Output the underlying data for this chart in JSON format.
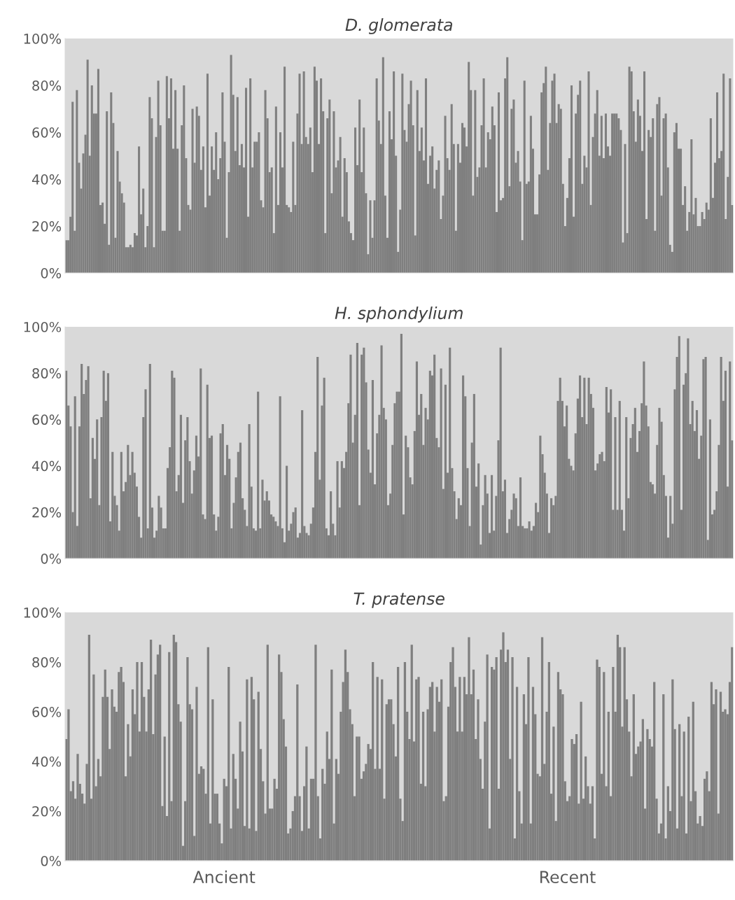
{
  "chart_data": [
    {
      "type": "bar",
      "title": "D. glomerata",
      "tick_labels": "y",
      "grid": false,
      "ylim": [
        0,
        100
      ],
      "yticks": [
        {
          "value": 0,
          "label": "0%"
        },
        {
          "value": 20,
          "label": "20%"
        },
        {
          "value": 40,
          "label": "40%"
        },
        {
          "value": 60,
          "label": "60%"
        },
        {
          "value": 80,
          "label": "80%"
        },
        {
          "value": 100,
          "label": "100%"
        }
      ],
      "categories": [
        null,
        null,
        null,
        null,
        null,
        null,
        null,
        null,
        null,
        null,
        null,
        null,
        null,
        null,
        null,
        null,
        null,
        null,
        null,
        null,
        null,
        null,
        null,
        null,
        null,
        null,
        null,
        null,
        null,
        null,
        null,
        null,
        null,
        null,
        null,
        null,
        null,
        null,
        null,
        null,
        null,
        null,
        null,
        null,
        null,
        null,
        null,
        null,
        null,
        null,
        null,
        null,
        null,
        null,
        null,
        null,
        null,
        null,
        null,
        null,
        null,
        null,
        null,
        null,
        null,
        null,
        null,
        null,
        null,
        null,
        null,
        null,
        null,
        null,
        null,
        null,
        null,
        null,
        null,
        null,
        null,
        null,
        null,
        null,
        null,
        null,
        null,
        null,
        null,
        null,
        null,
        null,
        null,
        null,
        null,
        null,
        null,
        null,
        null,
        null,
        null,
        null,
        null,
        null,
        null,
        null,
        null,
        null,
        null,
        null,
        null,
        null,
        null,
        null,
        null,
        null,
        null,
        null,
        null,
        null,
        null,
        null,
        null,
        null,
        null,
        null,
        null,
        null,
        null,
        null,
        null,
        null,
        null,
        null,
        null,
        null,
        null,
        null,
        null,
        null,
        null,
        null,
        null,
        null,
        null,
        null,
        null,
        null,
        null,
        null,
        null,
        null,
        null,
        null,
        null,
        null,
        null,
        null,
        null,
        null,
        null,
        null,
        null,
        null,
        null,
        null,
        null,
        null,
        null,
        null,
        null,
        null,
        null,
        null,
        null,
        null,
        null,
        null,
        null,
        null,
        null,
        null,
        null,
        null,
        null,
        null,
        null,
        null,
        null,
        null,
        null,
        null,
        null,
        null,
        null,
        null,
        null,
        null,
        null,
        null,
        null,
        null,
        null,
        null,
        null,
        null,
        null,
        null,
        null,
        null,
        null,
        null,
        null,
        null,
        null,
        null,
        null,
        null,
        null,
        null,
        null,
        null,
        null,
        null,
        null,
        null,
        null,
        null,
        null,
        null,
        null,
        null,
        null,
        null,
        null,
        null,
        null,
        null,
        null,
        null,
        null,
        null,
        null,
        null,
        null,
        null,
        null,
        null,
        null,
        null,
        null,
        null,
        null,
        null,
        null,
        null,
        null,
        null,
        null,
        null,
        null,
        null,
        null,
        null,
        null,
        null,
        null,
        null,
        null,
        null,
        null,
        null,
        null,
        null,
        null,
        null,
        null,
        null,
        null,
        null,
        null,
        null,
        null,
        null,
        null,
        null,
        null,
        null,
        null,
        null,
        null,
        null,
        null,
        null,
        null,
        null,
        null,
        null,
        null,
        null,
        null,
        null,
        null,
        null,
        null,
        null,
        null,
        null,
        null,
        null,
        null,
        null
      ],
      "series": [
        {
          "color": "#7f7f7f",
          "values": [
            14,
            14,
            24,
            73,
            18,
            78,
            47,
            36,
            51,
            59,
            91,
            50,
            80,
            68,
            68,
            87,
            29,
            30,
            21,
            69,
            12,
            77,
            64,
            15,
            52,
            39,
            34,
            30,
            11,
            11,
            12,
            11,
            17,
            16,
            54,
            25,
            36,
            11,
            20,
            75,
            66,
            11,
            58,
            82,
            63,
            18,
            18,
            84,
            66,
            83,
            53,
            78,
            53,
            18,
            63,
            80,
            49,
            29,
            27,
            70,
            47,
            71,
            67,
            44,
            54,
            28,
            85,
            33,
            54,
            44,
            60,
            40,
            49,
            77,
            56,
            15,
            43,
            93,
            76,
            52,
            75,
            46,
            55,
            45,
            79,
            24,
            83,
            45,
            56,
            56,
            60,
            31,
            28,
            78,
            66,
            43,
            45,
            17,
            71,
            29,
            60,
            45,
            88,
            29,
            28,
            26,
            56,
            29,
            68,
            85,
            55,
            86,
            58,
            55,
            62,
            43,
            88,
            82,
            55,
            83,
            69,
            17,
            66,
            74,
            34,
            69,
            45,
            48,
            58,
            24,
            49,
            43,
            22,
            17,
            14,
            62,
            46,
            74,
            43,
            62,
            34,
            8,
            31,
            15,
            31,
            83,
            65,
            55,
            92,
            33,
            15,
            69,
            57,
            86,
            50,
            9,
            27,
            85,
            61,
            56,
            72,
            82,
            63,
            16,
            78,
            52,
            62,
            48,
            83,
            38,
            50,
            54,
            36,
            44,
            48,
            23,
            33,
            67,
            49,
            44,
            72,
            55,
            18,
            55,
            47,
            64,
            62,
            54,
            90,
            78,
            33,
            78,
            41,
            45,
            63,
            83,
            45,
            60,
            57,
            71,
            63,
            26,
            77,
            31,
            32,
            83,
            92,
            37,
            70,
            74,
            47,
            52,
            39,
            14,
            82,
            38,
            39,
            67,
            53,
            25,
            25,
            42,
            77,
            81,
            88,
            44,
            64,
            82,
            85,
            64,
            72,
            70,
            38,
            20,
            32,
            49,
            80,
            24,
            68,
            76,
            82,
            38,
            50,
            45,
            86,
            29,
            58,
            68,
            78,
            50,
            67,
            49,
            68,
            54,
            50,
            68,
            68,
            68,
            66,
            61,
            13,
            55,
            17,
            88,
            86,
            69,
            56,
            74,
            67,
            52,
            86,
            23,
            61,
            58,
            66,
            18,
            72,
            75,
            33,
            66,
            68,
            45,
            12,
            9,
            60,
            64,
            53,
            53,
            29,
            37,
            18,
            26,
            57,
            25,
            32,
            20,
            20,
            26,
            23,
            30,
            27,
            66,
            32,
            47,
            77,
            49,
            52,
            85,
            23,
            41,
            83,
            29
          ]
        }
      ]
    },
    {
      "type": "bar",
      "title": "H. sphondylium",
      "tick_labels": "y",
      "grid": false,
      "ylim": [
        0,
        100
      ],
      "yticks": [
        {
          "value": 0,
          "label": "0%"
        },
        {
          "value": 20,
          "label": "20%"
        },
        {
          "value": 40,
          "label": "40%"
        },
        {
          "value": 60,
          "label": "60%"
        },
        {
          "value": 80,
          "label": "80%"
        },
        {
          "value": 100,
          "label": "100%"
        }
      ],
      "categories": [
        null,
        null,
        null,
        null,
        null,
        null,
        null,
        null,
        null,
        null,
        null,
        null,
        null,
        null,
        null,
        null,
        null,
        null,
        null,
        null,
        null,
        null,
        null,
        null,
        null,
        null,
        null,
        null,
        null,
        null,
        null,
        null,
        null,
        null,
        null,
        null,
        null,
        null,
        null,
        null,
        null,
        null,
        null,
        null,
        null,
        null,
        null,
        null,
        null,
        null,
        null,
        null,
        null,
        null,
        null,
        null,
        null,
        null,
        null,
        null,
        null,
        null,
        null,
        null,
        null,
        null,
        null,
        null,
        null,
        null,
        null,
        null,
        null,
        null,
        null,
        null,
        null,
        null,
        null,
        null,
        null,
        null,
        null,
        null,
        null,
        null,
        null,
        null,
        null,
        null,
        null,
        null,
        null,
        null,
        null,
        null,
        null,
        null,
        null,
        null,
        null,
        null,
        null,
        null,
        null,
        null,
        null,
        null,
        null,
        null,
        null,
        null,
        null,
        null,
        null,
        null,
        null,
        null,
        null,
        null,
        null,
        null,
        null,
        null,
        null,
        null,
        null,
        null,
        null,
        null,
        null,
        null,
        null,
        null,
        null,
        null,
        null,
        null,
        null,
        null,
        null,
        null,
        null,
        null,
        null,
        null,
        null,
        null,
        null,
        null,
        null,
        null,
        null,
        null,
        null,
        null,
        null,
        null,
        null,
        null,
        null,
        null,
        null,
        null,
        null,
        null,
        null,
        null,
        null,
        null,
        null,
        null,
        null,
        null,
        null,
        null,
        null,
        null,
        null,
        null,
        null,
        null,
        null,
        null,
        null,
        null,
        null,
        null,
        null,
        null,
        null,
        null,
        null,
        null,
        null,
        null,
        null,
        null,
        null,
        null,
        null,
        null,
        null,
        null,
        null,
        null,
        null,
        null,
        null,
        null,
        null,
        null,
        null,
        null,
        null,
        null,
        null,
        null,
        null,
        null,
        null,
        null,
        null,
        null,
        null,
        null,
        null,
        null,
        null,
        null,
        null,
        null,
        null,
        null,
        null,
        null,
        null,
        null,
        null,
        null,
        null,
        null,
        null,
        null,
        null,
        null,
        null,
        null,
        null,
        null,
        null,
        null,
        null,
        null,
        null,
        null,
        null,
        null,
        null,
        null,
        null,
        null,
        null,
        null,
        null,
        null,
        null,
        null,
        null,
        null,
        null,
        null,
        null,
        null,
        null,
        null,
        null,
        null,
        null,
        null,
        null,
        null,
        null,
        null,
        null,
        null,
        null,
        null,
        null,
        null,
        null,
        null,
        null,
        null,
        null,
        null,
        null,
        null,
        null,
        null,
        null,
        null,
        null
      ],
      "series": [
        {
          "color": "#7f7f7f",
          "values": [
            81,
            66,
            57,
            20,
            70,
            14,
            57,
            84,
            71,
            77,
            83,
            26,
            52,
            43,
            60,
            23,
            61,
            81,
            68,
            80,
            16,
            46,
            27,
            23,
            12,
            46,
            29,
            33,
            49,
            36,
            46,
            37,
            31,
            18,
            9,
            61,
            73,
            13,
            84,
            22,
            9,
            12,
            27,
            22,
            13,
            13,
            39,
            48,
            81,
            78,
            29,
            36,
            62,
            24,
            51,
            61,
            42,
            28,
            38,
            53,
            44,
            82,
            19,
            17,
            75,
            52,
            53,
            19,
            12,
            18,
            54,
            58,
            36,
            49,
            43,
            13,
            24,
            35,
            46,
            50,
            26,
            21,
            14,
            58,
            31,
            13,
            12,
            72,
            13,
            34,
            25,
            29,
            25,
            19,
            18,
            16,
            14,
            70,
            13,
            7,
            40,
            12,
            15,
            20,
            22,
            9,
            11,
            64,
            14,
            11,
            10,
            15,
            22,
            46,
            87,
            34,
            66,
            78,
            13,
            10,
            29,
            15,
            10,
            42,
            22,
            42,
            39,
            46,
            67,
            88,
            50,
            62,
            93,
            23,
            88,
            91,
            76,
            47,
            37,
            77,
            32,
            54,
            62,
            92,
            65,
            60,
            23,
            28,
            49,
            67,
            72,
            72,
            97,
            19,
            53,
            48,
            35,
            32,
            55,
            85,
            62,
            71,
            49,
            65,
            60,
            81,
            79,
            88,
            52,
            48,
            82,
            30,
            75,
            37,
            91,
            39,
            29,
            17,
            26,
            23,
            79,
            70,
            39,
            14,
            50,
            71,
            31,
            41,
            6,
            23,
            36,
            28,
            11,
            36,
            12,
            27,
            51,
            91,
            29,
            34,
            11,
            17,
            21,
            28,
            26,
            14,
            35,
            14,
            13,
            13,
            16,
            12,
            14,
            24,
            20,
            53,
            45,
            37,
            28,
            11,
            26,
            23,
            27,
            68,
            78,
            68,
            57,
            66,
            43,
            40,
            38,
            54,
            69,
            79,
            61,
            78,
            58,
            78,
            71,
            65,
            38,
            41,
            45,
            46,
            42,
            74,
            63,
            73,
            21,
            61,
            21,
            68,
            21,
            12,
            61,
            26,
            52,
            58,
            65,
            46,
            55,
            67,
            85,
            66,
            57,
            33,
            32,
            28,
            49,
            65,
            59,
            36,
            27,
            9,
            27,
            15,
            73,
            87,
            96,
            21,
            75,
            80,
            95,
            58,
            68,
            55,
            64,
            43,
            53,
            86,
            87,
            8,
            60,
            19,
            21,
            29,
            49,
            87,
            68,
            81,
            31,
            85,
            51
          ]
        }
      ]
    },
    {
      "type": "bar",
      "title": "T. pratense",
      "grid": false,
      "ylim": [
        0,
        100
      ],
      "yticks": [
        {
          "value": 0,
          "label": "0%"
        },
        {
          "value": 20,
          "label": "20%"
        },
        {
          "value": 40,
          "label": "40%"
        },
        {
          "value": 60,
          "label": "60%"
        },
        {
          "value": 80,
          "label": "80%"
        },
        {
          "value": 100,
          "label": "100%"
        }
      ],
      "categories": [
        null,
        null,
        null,
        null,
        null,
        null,
        null,
        null,
        null,
        null,
        null,
        null,
        null,
        null,
        null,
        null,
        null,
        null,
        null,
        null,
        null,
        null,
        null,
        null,
        null,
        null,
        null,
        null,
        null,
        null,
        null,
        null,
        null,
        null,
        null,
        null,
        null,
        null,
        null,
        null,
        null,
        null,
        null,
        null,
        null,
        null,
        null,
        null,
        null,
        null,
        null,
        null,
        null,
        null,
        null,
        null,
        null,
        null,
        null,
        null,
        null,
        null,
        null,
        null,
        null,
        null,
        null,
        null,
        null,
        "Ancient",
        null,
        null,
        null,
        null,
        null,
        null,
        null,
        null,
        null,
        null,
        null,
        null,
        null,
        null,
        null,
        null,
        null,
        null,
        null,
        null,
        null,
        null,
        null,
        null,
        null,
        null,
        null,
        null,
        null,
        null,
        null,
        null,
        null,
        null,
        null,
        null,
        null,
        null,
        null,
        null,
        null,
        null,
        null,
        null,
        null,
        null,
        null,
        null,
        null,
        null,
        null,
        null,
        null,
        null,
        null,
        null,
        null,
        null,
        null,
        null,
        null,
        null,
        null,
        null,
        null,
        null,
        null,
        null,
        null,
        null,
        null,
        null,
        null,
        null,
        null,
        null,
        null,
        null,
        null,
        null,
        null,
        null,
        null,
        null,
        null,
        null,
        null,
        null,
        null,
        null,
        null,
        null,
        null,
        null,
        null,
        null,
        null,
        null,
        null,
        null,
        null,
        null,
        null,
        null,
        null,
        null,
        null,
        null,
        null,
        null,
        null,
        null,
        null,
        null,
        null,
        null,
        null,
        null,
        null,
        null,
        null,
        null,
        null,
        null,
        null,
        null,
        null,
        null,
        null,
        null,
        null,
        null,
        null,
        null,
        null,
        null,
        null,
        null,
        null,
        null,
        null,
        null,
        null,
        null,
        null,
        null,
        null,
        null,
        null,
        "Recent",
        null,
        null,
        null,
        null,
        null,
        null,
        null,
        null,
        null,
        null,
        null,
        null,
        null,
        null,
        null,
        null,
        null,
        null,
        null,
        null,
        null,
        null,
        null,
        null,
        null,
        null,
        null,
        null,
        null,
        null,
        null,
        null,
        null,
        null,
        null,
        null,
        null,
        null,
        null,
        null,
        null,
        null,
        null,
        null,
        null,
        null,
        null,
        null,
        null,
        null,
        null,
        null,
        null,
        null,
        null,
        null,
        null,
        null,
        null,
        null,
        null,
        null,
        null,
        null,
        null,
        null,
        null,
        null,
        null,
        null,
        null,
        null
      ],
      "series": [
        {
          "color": "#7f7f7f",
          "values": [
            49,
            61,
            28,
            32,
            25,
            43,
            31,
            27,
            23,
            39,
            91,
            25,
            75,
            30,
            41,
            34,
            66,
            77,
            66,
            45,
            69,
            62,
            60,
            76,
            78,
            72,
            34,
            55,
            42,
            69,
            59,
            80,
            52,
            80,
            66,
            52,
            69,
            89,
            51,
            75,
            83,
            87,
            22,
            50,
            18,
            84,
            24,
            91,
            88,
            63,
            56,
            6,
            24,
            82,
            63,
            61,
            10,
            70,
            35,
            38,
            37,
            27,
            86,
            15,
            65,
            27,
            27,
            15,
            7,
            33,
            30,
            78,
            13,
            43,
            33,
            21,
            56,
            44,
            14,
            73,
            13,
            74,
            65,
            12,
            68,
            45,
            32,
            19,
            87,
            21,
            21,
            33,
            29,
            83,
            76,
            57,
            46,
            11,
            13,
            20,
            26,
            71,
            26,
            12,
            30,
            46,
            13,
            33,
            33,
            87,
            26,
            9,
            37,
            31,
            52,
            41,
            77,
            15,
            41,
            35,
            60,
            72,
            85,
            76,
            61,
            55,
            26,
            50,
            50,
            33,
            36,
            39,
            47,
            45,
            80,
            37,
            74,
            37,
            73,
            25,
            63,
            65,
            65,
            55,
            42,
            78,
            25,
            16,
            80,
            60,
            49,
            87,
            48,
            73,
            74,
            31,
            60,
            30,
            61,
            70,
            72,
            52,
            70,
            64,
            73,
            24,
            26,
            62,
            80,
            86,
            70,
            52,
            74,
            52,
            74,
            67,
            90,
            67,
            77,
            49,
            65,
            41,
            29,
            56,
            83,
            13,
            78,
            77,
            82,
            29,
            85,
            92,
            80,
            85,
            41,
            82,
            9,
            70,
            28,
            15,
            67,
            55,
            82,
            15,
            70,
            59,
            35,
            34,
            90,
            39,
            60,
            80,
            27,
            54,
            16,
            76,
            69,
            67,
            32,
            24,
            26,
            49,
            47,
            51,
            23,
            64,
            25,
            42,
            30,
            23,
            30,
            9,
            81,
            78,
            35,
            76,
            30,
            60,
            26,
            78,
            60,
            91,
            86,
            54,
            86,
            65,
            52,
            34,
            67,
            43,
            46,
            48,
            57,
            21,
            53,
            49,
            46,
            72,
            25,
            11,
            15,
            67,
            9,
            30,
            20,
            73,
            53,
            13,
            55,
            26,
            52,
            11,
            58,
            24,
            64,
            28,
            15,
            18,
            14,
            33,
            36,
            28,
            72,
            63,
            69,
            19,
            68,
            60,
            61,
            59,
            72,
            86
          ]
        }
      ]
    }
  ]
}
